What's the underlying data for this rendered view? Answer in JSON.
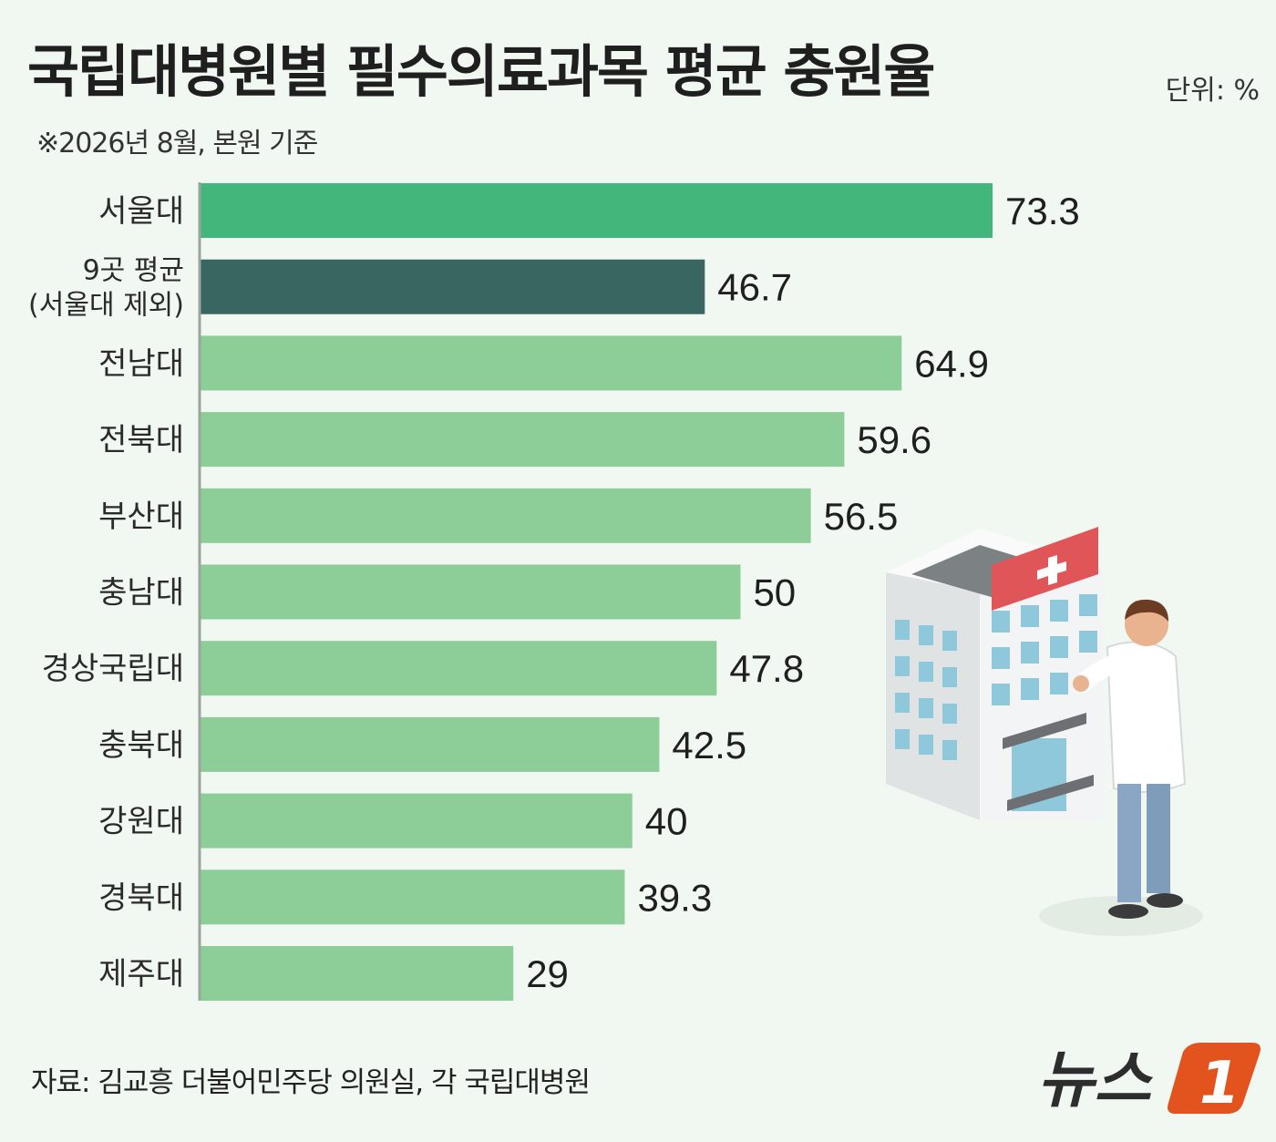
{
  "title": "국립대병원별 필수의료과목 평균 충원율",
  "unit": "단위: %",
  "note": "※2026년 8월, 본원 기준",
  "source": "자료: 김교흥 더불어민주당 의원실, 각 국립대병원",
  "logo": {
    "text": "뉴스",
    "number": "1"
  },
  "colors": {
    "seoul": "#43b77b",
    "average": "#3a6662",
    "others": "#8ccd98",
    "axis": "#9aa59c",
    "logo_text": "#2d2d2d",
    "logo_accent": "#e2531e"
  },
  "chart_data": {
    "type": "bar",
    "orientation": "horizontal",
    "categories": [
      "서울대",
      "9곳 평균\n(서울대 제외)",
      "전남대",
      "전북대",
      "부산대",
      "충남대",
      "경상국립대",
      "충북대",
      "강원대",
      "경북대",
      "제주대"
    ],
    "values": [
      73.3,
      46.7,
      64.9,
      59.6,
      56.5,
      50,
      47.8,
      42.5,
      40,
      39.3,
      29
    ],
    "value_labels": [
      "73.3",
      "46.7",
      "64.9",
      "59.6",
      "56.5",
      "50",
      "47.8",
      "42.5",
      "40",
      "39.3",
      "29"
    ],
    "xlim": [
      0,
      80
    ],
    "grid": false,
    "legend": "none"
  }
}
